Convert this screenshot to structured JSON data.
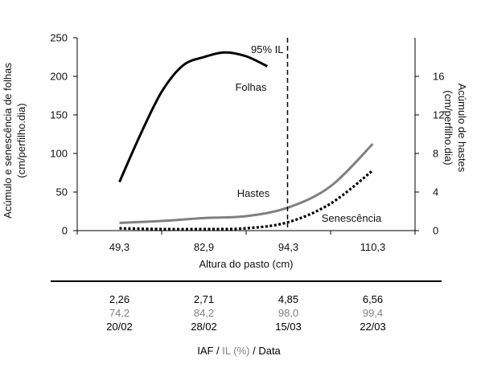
{
  "chart_data": {
    "type": "line",
    "xlabel": "Altura do pasto (cm)",
    "ylabel_left": [
      "Acúmulo e senescência de folhas",
      "(cm/perfilho.dia)"
    ],
    "ylabel_right": [
      "Acúmulo de hastes",
      "(cm/perfilho.dia)"
    ],
    "x_ticks": [
      "49,3",
      "82,9",
      "94,3",
      "110,3"
    ],
    "ylim_left": [
      0,
      250
    ],
    "yticks_left": [
      "0",
      "50",
      "100",
      "150",
      "200",
      "250"
    ],
    "ylim_right": [
      0,
      20
    ],
    "yticks_right": [
      "0",
      "4",
      "8",
      "12",
      "16"
    ],
    "grid": false,
    "series": [
      {
        "name": "Folhas",
        "axis": "left",
        "style": "solid",
        "color": "#000000",
        "points": [
          [
            0,
            63
          ],
          [
            0.25,
            125
          ],
          [
            0.5,
            180
          ],
          [
            0.75,
            214
          ],
          [
            1.0,
            225
          ],
          [
            1.25,
            231
          ],
          [
            1.5,
            226
          ],
          [
            1.75,
            213
          ]
        ]
      },
      {
        "name": "Hastes",
        "axis": "right",
        "style": "solid",
        "color": "#808080",
        "points": [
          [
            0,
            0.8
          ],
          [
            0.5,
            1.0
          ],
          [
            1.0,
            1.3
          ],
          [
            1.5,
            1.5
          ],
          [
            2.0,
            2.4
          ],
          [
            2.5,
            4.6
          ],
          [
            3.0,
            9.0
          ]
        ]
      },
      {
        "name": "Senescência",
        "axis": "left",
        "style": "dotted",
        "color": "#000000",
        "points": [
          [
            0,
            3
          ],
          [
            0.5,
            2
          ],
          [
            1.0,
            2
          ],
          [
            1.5,
            3
          ],
          [
            2.0,
            11
          ],
          [
            2.5,
            35
          ],
          [
            3.0,
            78
          ]
        ]
      }
    ],
    "annotations": {
      "marker_label": "95% IL",
      "marker_x": 2.0,
      "folhas_label": "Folhas",
      "hastes_label": "Hastes",
      "senescencia_label": "Senescência"
    },
    "table": {
      "iaf": [
        "2,26",
        "2,71",
        "4,85",
        "6,56"
      ],
      "il": [
        "74,2",
        "84,2",
        "98,0",
        "99,4"
      ],
      "data": [
        "20/02",
        "28/02",
        "15/03",
        "22/03"
      ],
      "caption_iaf": "IAF",
      "caption_sep1": " / ",
      "caption_il": "IL (%)",
      "caption_sep2": " / Data"
    },
    "colors": {
      "primary": "#000000",
      "secondary": "#808080"
    }
  }
}
